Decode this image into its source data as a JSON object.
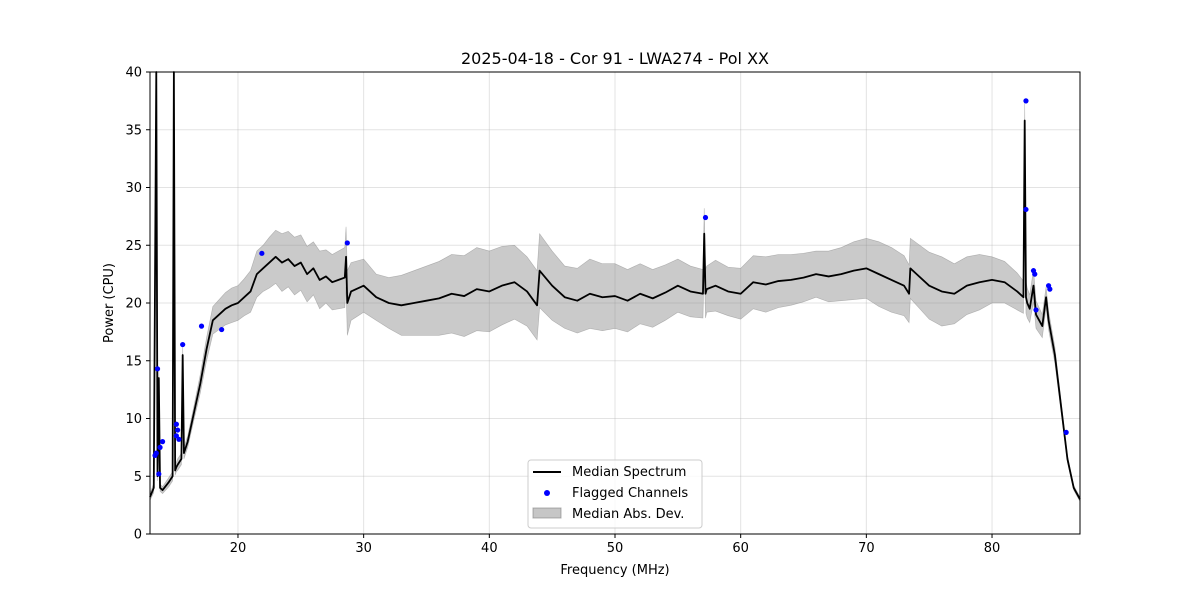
{
  "chart_data": {
    "type": "line",
    "title": "2025-04-18 - Cor 91 - LWA274 - Pol XX",
    "xlabel": "Frequency (MHz)",
    "ylabel": "Power (CPU)",
    "xlim": [
      13.0,
      87.0
    ],
    "ylim": [
      0,
      40
    ],
    "xticks": [
      20,
      30,
      40,
      50,
      60,
      70,
      80
    ],
    "yticks": [
      0,
      5,
      10,
      15,
      20,
      25,
      30,
      35,
      40
    ],
    "grid": true,
    "legend_position": "lower-center",
    "legend": [
      "Median Spectrum",
      "Flagged Channels",
      "Median Abs. Dev."
    ],
    "colors": {
      "median": "#000000",
      "flagged": "#0000ff",
      "band": "#808080"
    },
    "series": [
      {
        "name": "Median Spectrum",
        "x": [
          13.0,
          13.3,
          13.5,
          13.6,
          13.7,
          13.8,
          14.0,
          14.5,
          14.8,
          14.9,
          15.0,
          15.1,
          15.2,
          15.5,
          15.6,
          15.7,
          16.0,
          16.5,
          17.0,
          17.5,
          18.0,
          18.5,
          19.0,
          19.5,
          20.0,
          20.5,
          21.0,
          21.5,
          22.0,
          22.5,
          23.0,
          23.5,
          24.0,
          24.5,
          25.0,
          25.5,
          26.0,
          26.5,
          27.0,
          27.5,
          28.0,
          28.5,
          28.6,
          28.7,
          29.0,
          30.0,
          31.0,
          32.0,
          33.0,
          34.0,
          35.0,
          36.0,
          37.0,
          38.0,
          39.0,
          40.0,
          41.0,
          42.0,
          43.0,
          43.8,
          44.0,
          45.0,
          46.0,
          47.0,
          48.0,
          49.0,
          50.0,
          51.0,
          52.0,
          53.0,
          54.0,
          55.0,
          56.0,
          57.0,
          57.1,
          57.2,
          57.3,
          58.0,
          59.0,
          60.0,
          61.0,
          62.0,
          63.0,
          64.0,
          65.0,
          66.0,
          67.0,
          68.0,
          69.0,
          70.0,
          71.0,
          72.0,
          73.0,
          73.4,
          73.5,
          74.0,
          75.0,
          76.0,
          77.0,
          78.0,
          79.0,
          80.0,
          81.0,
          82.0,
          82.5,
          82.6,
          82.7,
          82.8,
          83.0,
          83.3,
          83.5,
          84.0,
          84.3,
          84.5,
          85.0,
          85.5,
          86.0,
          86.5,
          87.0
        ],
        "values": [
          3.2,
          4.0,
          40,
          5.0,
          13.5,
          4.0,
          3.8,
          4.5,
          5.0,
          40,
          5.5,
          5.8,
          6.0,
          6.5,
          15.5,
          7.0,
          8.0,
          10.5,
          13.0,
          16.0,
          18.5,
          19.0,
          19.5,
          19.8,
          20.0,
          20.5,
          21.0,
          22.5,
          23.0,
          23.5,
          24.0,
          23.5,
          23.8,
          23.2,
          23.5,
          22.5,
          23.0,
          22.0,
          22.3,
          21.8,
          22.0,
          22.2,
          24.0,
          20.0,
          21.0,
          21.5,
          20.5,
          20.0,
          19.8,
          20.0,
          20.2,
          20.4,
          20.8,
          20.6,
          21.2,
          21.0,
          21.5,
          21.8,
          21.0,
          19.8,
          22.8,
          21.5,
          20.5,
          20.2,
          20.8,
          20.5,
          20.6,
          20.2,
          20.8,
          20.4,
          20.9,
          21.5,
          21.0,
          20.8,
          26.0,
          20.8,
          21.2,
          21.5,
          21.0,
          20.8,
          21.8,
          21.6,
          21.9,
          22.0,
          22.2,
          22.5,
          22.3,
          22.5,
          22.8,
          23.0,
          22.5,
          22.0,
          21.5,
          20.8,
          23.0,
          22.5,
          21.5,
          21.0,
          20.8,
          21.5,
          21.8,
          22.0,
          21.8,
          21.0,
          20.5,
          35.8,
          20.5,
          20.0,
          19.5,
          21.5,
          19.0,
          18.0,
          20.5,
          18.5,
          15.5,
          11.0,
          6.5,
          4.0,
          3.0
        ],
        "mad": [
          0.3,
          0.4,
          1.0,
          0.4,
          0.8,
          0.3,
          0.3,
          0.4,
          0.4,
          1.0,
          0.4,
          0.4,
          0.5,
          0.5,
          0.8,
          0.5,
          0.5,
          0.6,
          0.8,
          1.0,
          1.2,
          1.3,
          1.4,
          1.5,
          1.5,
          1.6,
          1.8,
          2.0,
          2.0,
          2.2,
          2.3,
          2.5,
          2.4,
          2.5,
          2.4,
          2.4,
          2.3,
          2.5,
          2.3,
          2.4,
          2.5,
          2.6,
          2.6,
          2.8,
          2.5,
          2.3,
          2.0,
          2.2,
          2.6,
          2.8,
          3.0,
          3.2,
          3.4,
          3.5,
          3.6,
          3.5,
          3.4,
          3.2,
          3.0,
          3.0,
          3.2,
          3.0,
          2.7,
          2.8,
          3.0,
          2.9,
          2.8,
          2.7,
          2.6,
          2.5,
          2.4,
          2.3,
          2.2,
          2.1,
          2.2,
          2.1,
          2.0,
          2.2,
          2.1,
          2.2,
          2.3,
          2.4,
          2.3,
          2.2,
          2.1,
          2.0,
          2.2,
          2.3,
          2.5,
          2.6,
          2.8,
          2.8,
          2.6,
          2.5,
          2.6,
          2.7,
          2.9,
          3.0,
          2.6,
          2.5,
          2.4,
          2.0,
          1.8,
          1.6,
          1.4,
          1.5,
          1.4,
          1.3,
          1.2,
          1.4,
          1.2,
          1.0,
          0.9,
          0.8,
          0.7,
          0.5,
          0.3,
          0.2,
          0.2
        ]
      },
      {
        "name": "Flagged Channels",
        "points": [
          [
            13.4,
            6.8
          ],
          [
            13.5,
            7.0
          ],
          [
            13.6,
            14.3
          ],
          [
            13.7,
            5.2
          ],
          [
            13.8,
            7.5
          ],
          [
            14.0,
            8.0
          ],
          [
            15.1,
            9.5
          ],
          [
            15.2,
            9.0
          ],
          [
            15.1,
            8.5
          ],
          [
            15.3,
            8.2
          ],
          [
            15.6,
            16.4
          ],
          [
            17.1,
            18.0
          ],
          [
            18.7,
            17.7
          ],
          [
            21.9,
            24.3
          ],
          [
            28.7,
            25.2
          ],
          [
            57.2,
            27.4
          ],
          [
            82.7,
            37.5
          ],
          [
            82.7,
            28.1
          ],
          [
            83.3,
            22.8
          ],
          [
            83.4,
            22.5
          ],
          [
            83.5,
            19.4
          ],
          [
            84.5,
            21.5
          ],
          [
            84.6,
            21.2
          ],
          [
            85.9,
            8.8
          ]
        ]
      }
    ]
  }
}
